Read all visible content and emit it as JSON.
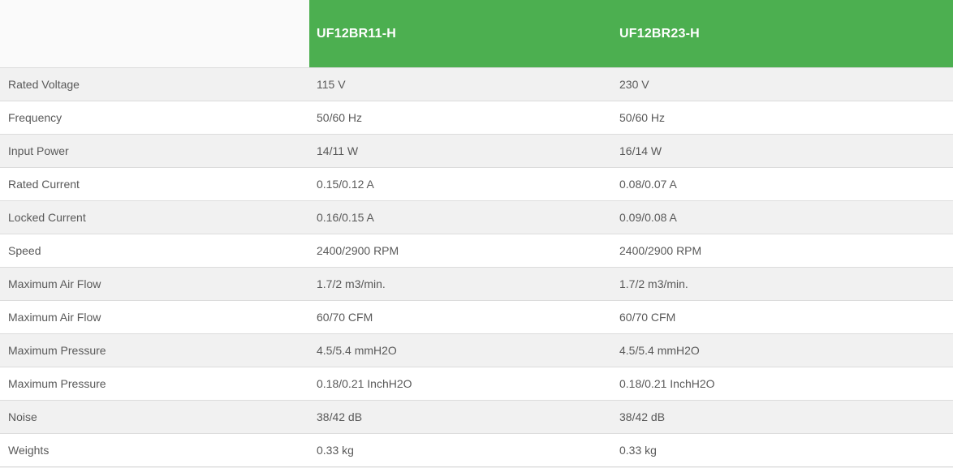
{
  "colors": {
    "header_bg": "#4caf50",
    "header_text": "#ffffff",
    "corner_bg": "#fafafa",
    "row_bg": "#ffffff",
    "row_alt_bg": "#f1f1f1",
    "border": "#dcdcdc",
    "text": "#595959"
  },
  "table": {
    "columns": [
      {
        "label": "UF12BR11-H"
      },
      {
        "label": "UF12BR23-H"
      }
    ],
    "rows": [
      {
        "label": "Rated Voltage",
        "values": [
          "115 V",
          "230 V"
        ]
      },
      {
        "label": "Frequency",
        "values": [
          "50/60 Hz",
          "50/60 Hz"
        ]
      },
      {
        "label": "Input Power",
        "values": [
          "14/11 W",
          "16/14 W"
        ]
      },
      {
        "label": "Rated Current",
        "values": [
          "0.15/0.12 A",
          "0.08/0.07 A"
        ]
      },
      {
        "label": "Locked Current",
        "values": [
          "0.16/0.15 A",
          "0.09/0.08 A"
        ]
      },
      {
        "label": "Speed",
        "values": [
          "2400/2900 RPM",
          "2400/2900 RPM"
        ]
      },
      {
        "label": "Maximum Air Flow",
        "values": [
          "1.7/2 m3/min.",
          "1.7/2 m3/min."
        ]
      },
      {
        "label": "Maximum Air Flow",
        "values": [
          "60/70 CFM",
          "60/70 CFM"
        ]
      },
      {
        "label": "Maximum Pressure",
        "values": [
          "4.5/5.4 mmH2O",
          "4.5/5.4 mmH2O"
        ]
      },
      {
        "label": "Maximum Pressure",
        "values": [
          "0.18/0.21 InchH2O",
          "0.18/0.21 InchH2O"
        ]
      },
      {
        "label": "Noise",
        "values": [
          "38/42 dB",
          "38/42 dB"
        ]
      },
      {
        "label": "Weights",
        "values": [
          "0.33 kg",
          "0.33 kg"
        ]
      }
    ]
  }
}
